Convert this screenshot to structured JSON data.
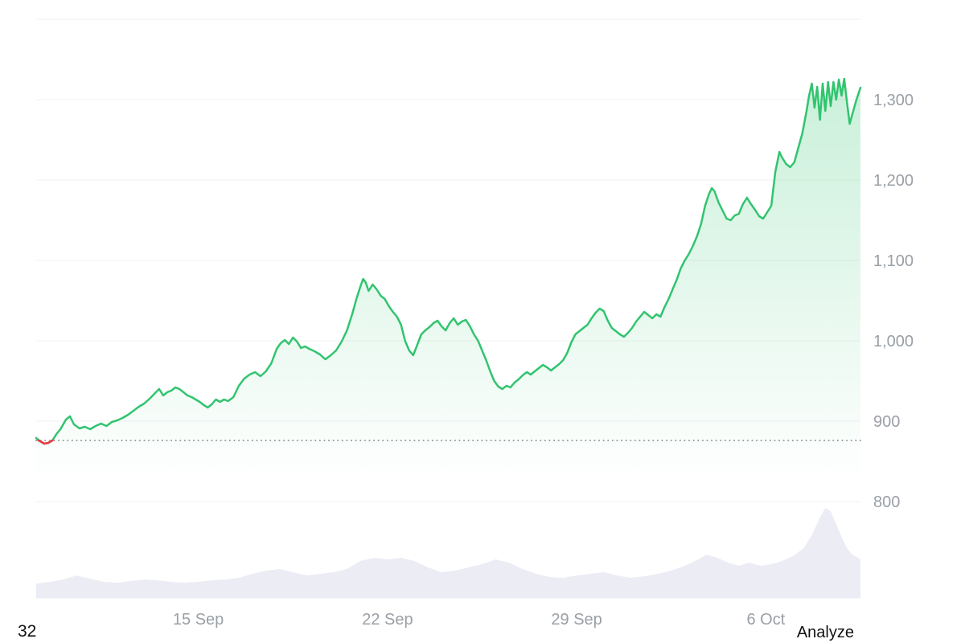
{
  "footer": {
    "left_text": "32",
    "right_text": "Analyze"
  },
  "chart_data": {
    "type": "line",
    "title": "",
    "x_unit": "days-from-start (start ≈ 9 Sep)",
    "x_range": [
      0,
      30.5
    ],
    "x_ticks": [
      {
        "pos": 6,
        "label": "15 Sep"
      },
      {
        "pos": 13,
        "label": "22 Sep"
      },
      {
        "pos": 20,
        "label": "29 Sep"
      },
      {
        "pos": 27,
        "label": "6 Oct"
      }
    ],
    "y_ticks": [
      {
        "value": 1300,
        "label": "1,300"
      },
      {
        "value": 1200,
        "label": "1,200"
      },
      {
        "value": 1100,
        "label": "1,100"
      },
      {
        "value": 1000,
        "label": "1,000"
      },
      {
        "value": 900,
        "label": "900"
      },
      {
        "value": 800,
        "label": "800"
      }
    ],
    "y_gridlines": [
      1400,
      1300,
      1200,
      1100,
      1000,
      900,
      800
    ],
    "ylim": [
      680,
      1400
    ],
    "grid_on": true,
    "legend": "none",
    "baseline": {
      "value": 876,
      "style": "dotted",
      "color": "#999999"
    },
    "colors": {
      "up_line": "#31c46f",
      "down_line": "#ea3943",
      "volume_fill": "#ebecf4",
      "grid": "#f0f1f2",
      "axis_text": "#9aa0a6"
    },
    "series": [
      {
        "name": "volume",
        "fill": "#ebecf4",
        "base": 680,
        "points": [
          [
            0,
            698
          ],
          [
            0.5,
            700
          ],
          [
            1,
            703
          ],
          [
            1.5,
            708
          ],
          [
            2,
            704
          ],
          [
            2.5,
            700
          ],
          [
            3,
            699
          ],
          [
            3.5,
            701
          ],
          [
            4,
            703
          ],
          [
            4.5,
            702
          ],
          [
            5,
            700
          ],
          [
            5.5,
            699
          ],
          [
            6,
            700
          ],
          [
            6.5,
            702
          ],
          [
            7,
            703
          ],
          [
            7.5,
            705
          ],
          [
            8,
            710
          ],
          [
            8.5,
            714
          ],
          [
            9,
            716
          ],
          [
            9.5,
            712
          ],
          [
            10,
            708
          ],
          [
            10.5,
            710
          ],
          [
            11,
            712
          ],
          [
            11.5,
            716
          ],
          [
            12,
            726
          ],
          [
            12.5,
            730
          ],
          [
            13,
            728
          ],
          [
            13.5,
            730
          ],
          [
            14,
            726
          ],
          [
            14.5,
            718
          ],
          [
            15,
            712
          ],
          [
            15.5,
            714
          ],
          [
            16,
            718
          ],
          [
            16.5,
            722
          ],
          [
            17,
            728
          ],
          [
            17.5,
            724
          ],
          [
            18,
            716
          ],
          [
            18.5,
            710
          ],
          [
            19,
            706
          ],
          [
            19.5,
            705
          ],
          [
            20,
            708
          ],
          [
            20.5,
            710
          ],
          [
            21,
            712
          ],
          [
            21.5,
            708
          ],
          [
            22,
            705
          ],
          [
            22.5,
            707
          ],
          [
            23,
            710
          ],
          [
            23.5,
            714
          ],
          [
            24,
            720
          ],
          [
            24.5,
            728
          ],
          [
            24.8,
            734
          ],
          [
            25.2,
            730
          ],
          [
            25.6,
            724
          ],
          [
            26,
            720
          ],
          [
            26.4,
            724
          ],
          [
            26.8,
            720
          ],
          [
            27.2,
            722
          ],
          [
            27.6,
            726
          ],
          [
            28,
            732
          ],
          [
            28.4,
            742
          ],
          [
            28.7,
            758
          ],
          [
            29,
            780
          ],
          [
            29.2,
            792
          ],
          [
            29.4,
            788
          ],
          [
            29.6,
            772
          ],
          [
            29.8,
            756
          ],
          [
            30,
            742
          ],
          [
            30.2,
            734
          ],
          [
            30.5,
            728
          ]
        ]
      },
      {
        "name": "price",
        "stroke": "#31c46f",
        "stroke_width": 2.5,
        "fill": "gradient",
        "base": 680,
        "points": [
          [
            0,
            879
          ],
          [
            0.15,
            875
          ],
          [
            0.3,
            872
          ],
          [
            0.45,
            873
          ],
          [
            0.6,
            876
          ],
          [
            0.75,
            884
          ],
          [
            0.9,
            890
          ],
          [
            1.1,
            902
          ],
          [
            1.25,
            906
          ],
          [
            1.4,
            896
          ],
          [
            1.6,
            891
          ],
          [
            1.8,
            893
          ],
          [
            2,
            890
          ],
          [
            2.2,
            894
          ],
          [
            2.4,
            897
          ],
          [
            2.6,
            894
          ],
          [
            2.8,
            899
          ],
          [
            3,
            901
          ],
          [
            3.2,
            904
          ],
          [
            3.4,
            908
          ],
          [
            3.6,
            913
          ],
          [
            3.8,
            918
          ],
          [
            4,
            922
          ],
          [
            4.2,
            928
          ],
          [
            4.4,
            935
          ],
          [
            4.55,
            940
          ],
          [
            4.7,
            932
          ],
          [
            4.85,
            936
          ],
          [
            5,
            938
          ],
          [
            5.15,
            942
          ],
          [
            5.3,
            940
          ],
          [
            5.45,
            936
          ],
          [
            5.6,
            932
          ],
          [
            5.75,
            930
          ],
          [
            5.9,
            927
          ],
          [
            6.05,
            924
          ],
          [
            6.2,
            920
          ],
          [
            6.35,
            917
          ],
          [
            6.5,
            921
          ],
          [
            6.65,
            927
          ],
          [
            6.8,
            924
          ],
          [
            6.95,
            927
          ],
          [
            7.1,
            925
          ],
          [
            7.3,
            930
          ],
          [
            7.5,
            944
          ],
          [
            7.7,
            953
          ],
          [
            7.9,
            958
          ],
          [
            8.1,
            961
          ],
          [
            8.3,
            956
          ],
          [
            8.5,
            962
          ],
          [
            8.7,
            972
          ],
          [
            8.9,
            990
          ],
          [
            9.05,
            997
          ],
          [
            9.2,
            1001
          ],
          [
            9.35,
            996
          ],
          [
            9.5,
            1004
          ],
          [
            9.65,
            999
          ],
          [
            9.8,
            991
          ],
          [
            9.95,
            993
          ],
          [
            10.1,
            990
          ],
          [
            10.3,
            987
          ],
          [
            10.5,
            983
          ],
          [
            10.7,
            977
          ],
          [
            10.9,
            982
          ],
          [
            11.1,
            988
          ],
          [
            11.3,
            999
          ],
          [
            11.5,
            1013
          ],
          [
            11.7,
            1034
          ],
          [
            11.85,
            1052
          ],
          [
            12,
            1068
          ],
          [
            12.1,
            1077
          ],
          [
            12.2,
            1072
          ],
          [
            12.3,
            1062
          ],
          [
            12.45,
            1070
          ],
          [
            12.6,
            1064
          ],
          [
            12.75,
            1056
          ],
          [
            12.9,
            1052
          ],
          [
            13.05,
            1043
          ],
          [
            13.2,
            1036
          ],
          [
            13.35,
            1030
          ],
          [
            13.5,
            1020
          ],
          [
            13.65,
            1000
          ],
          [
            13.8,
            988
          ],
          [
            13.95,
            982
          ],
          [
            14.1,
            995
          ],
          [
            14.25,
            1008
          ],
          [
            14.4,
            1013
          ],
          [
            14.55,
            1017
          ],
          [
            14.7,
            1022
          ],
          [
            14.85,
            1025
          ],
          [
            15,
            1018
          ],
          [
            15.15,
            1013
          ],
          [
            15.3,
            1022
          ],
          [
            15.45,
            1028
          ],
          [
            15.6,
            1020
          ],
          [
            15.75,
            1024
          ],
          [
            15.9,
            1026
          ],
          [
            16.05,
            1018
          ],
          [
            16.2,
            1008
          ],
          [
            16.35,
            1000
          ],
          [
            16.5,
            988
          ],
          [
            16.65,
            976
          ],
          [
            16.8,
            962
          ],
          [
            16.95,
            950
          ],
          [
            17.1,
            943
          ],
          [
            17.25,
            940
          ],
          [
            17.4,
            944
          ],
          [
            17.55,
            942
          ],
          [
            17.7,
            948
          ],
          [
            17.85,
            952
          ],
          [
            18,
            957
          ],
          [
            18.15,
            961
          ],
          [
            18.3,
            958
          ],
          [
            18.45,
            962
          ],
          [
            18.6,
            966
          ],
          [
            18.75,
            970
          ],
          [
            18.9,
            967
          ],
          [
            19.05,
            963
          ],
          [
            19.2,
            967
          ],
          [
            19.35,
            971
          ],
          [
            19.5,
            976
          ],
          [
            19.65,
            985
          ],
          [
            19.8,
            998
          ],
          [
            19.95,
            1008
          ],
          [
            20.1,
            1012
          ],
          [
            20.25,
            1016
          ],
          [
            20.4,
            1020
          ],
          [
            20.55,
            1028
          ],
          [
            20.7,
            1035
          ],
          [
            20.85,
            1040
          ],
          [
            21,
            1037
          ],
          [
            21.15,
            1025
          ],
          [
            21.3,
            1016
          ],
          [
            21.45,
            1012
          ],
          [
            21.6,
            1008
          ],
          [
            21.75,
            1005
          ],
          [
            21.9,
            1010
          ],
          [
            22.05,
            1016
          ],
          [
            22.2,
            1024
          ],
          [
            22.35,
            1030
          ],
          [
            22.5,
            1036
          ],
          [
            22.65,
            1032
          ],
          [
            22.8,
            1028
          ],
          [
            22.95,
            1033
          ],
          [
            23.1,
            1030
          ],
          [
            23.25,
            1042
          ],
          [
            23.4,
            1052
          ],
          [
            23.55,
            1064
          ],
          [
            23.7,
            1076
          ],
          [
            23.85,
            1090
          ],
          [
            24,
            1100
          ],
          [
            24.15,
            1108
          ],
          [
            24.3,
            1118
          ],
          [
            24.45,
            1130
          ],
          [
            24.6,
            1145
          ],
          [
            24.75,
            1168
          ],
          [
            24.9,
            1183
          ],
          [
            25,
            1190
          ],
          [
            25.1,
            1186
          ],
          [
            25.25,
            1172
          ],
          [
            25.4,
            1162
          ],
          [
            25.55,
            1152
          ],
          [
            25.7,
            1150
          ],
          [
            25.85,
            1156
          ],
          [
            26,
            1158
          ],
          [
            26.15,
            1170
          ],
          [
            26.3,
            1178
          ],
          [
            26.45,
            1170
          ],
          [
            26.6,
            1163
          ],
          [
            26.75,
            1155
          ],
          [
            26.9,
            1152
          ],
          [
            27.05,
            1160
          ],
          [
            27.2,
            1168
          ],
          [
            27.35,
            1210
          ],
          [
            27.5,
            1235
          ],
          [
            27.6,
            1228
          ],
          [
            27.75,
            1220
          ],
          [
            27.9,
            1216
          ],
          [
            28.05,
            1222
          ],
          [
            28.2,
            1240
          ],
          [
            28.35,
            1258
          ],
          [
            28.5,
            1285
          ],
          [
            28.6,
            1305
          ],
          [
            28.7,
            1320
          ],
          [
            28.8,
            1290
          ],
          [
            28.9,
            1316
          ],
          [
            29,
            1275
          ],
          [
            29.1,
            1320
          ],
          [
            29.2,
            1286
          ],
          [
            29.3,
            1322
          ],
          [
            29.4,
            1292
          ],
          [
            29.5,
            1322
          ],
          [
            29.6,
            1300
          ],
          [
            29.7,
            1325
          ],
          [
            29.8,
            1305
          ],
          [
            29.9,
            1326
          ],
          [
            30,
            1297
          ],
          [
            30.1,
            1270
          ],
          [
            30.2,
            1282
          ],
          [
            30.35,
            1300
          ],
          [
            30.5,
            1315
          ]
        ]
      },
      {
        "name": "price-below-baseline",
        "stroke": "#ea3943",
        "stroke_width": 2.5,
        "points": [
          [
            0.08,
            876
          ],
          [
            0.15,
            875
          ],
          [
            0.3,
            872
          ],
          [
            0.45,
            873
          ],
          [
            0.6,
            876
          ]
        ]
      }
    ]
  }
}
